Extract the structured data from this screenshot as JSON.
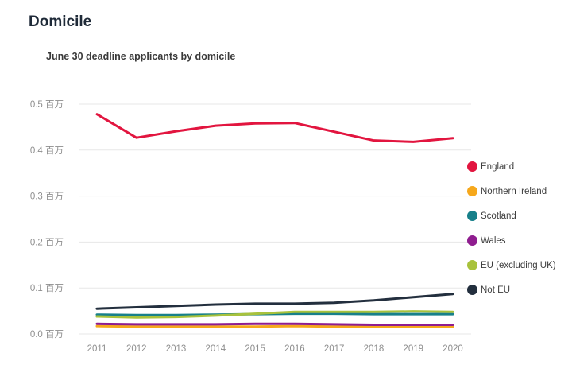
{
  "header": {
    "title": "Domicile"
  },
  "colors": {
    "background": "#ffffff",
    "title_text": "#1f2a38",
    "subtitle_text": "#3a3a3a",
    "axis_label": "#8e8e8e",
    "gridline": "#e7e7e7",
    "legend_text": "#3d3d3d"
  },
  "chart_data": {
    "type": "line",
    "title": "June 30 deadline applicants by domicile",
    "xlabel": "",
    "ylabel": "",
    "unit_label": "百万",
    "x": [
      2011,
      2012,
      2013,
      2014,
      2015,
      2016,
      2017,
      2018,
      2019,
      2020
    ],
    "ylim": [
      0,
      0.5
    ],
    "ytick_step": 0.1,
    "yticks": [
      "0.0 百万",
      "0.1 百万",
      "0.2 百万",
      "0.3 百万",
      "0.4 百万",
      "0.5 百万"
    ],
    "grid": true,
    "legend_position": "right",
    "series": [
      {
        "name": "England",
        "color": "#e2153f",
        "values": [
          0.478,
          0.427,
          0.441,
          0.453,
          0.458,
          0.459,
          0.44,
          0.421,
          0.418,
          0.426
        ]
      },
      {
        "name": "Northern Ireland",
        "color": "#f6a81c",
        "values": [
          0.017,
          0.016,
          0.016,
          0.016,
          0.016,
          0.017,
          0.016,
          0.016,
          0.015,
          0.016
        ]
      },
      {
        "name": "Scotland",
        "color": "#17808a",
        "values": [
          0.042,
          0.041,
          0.041,
          0.042,
          0.043,
          0.044,
          0.044,
          0.043,
          0.043,
          0.043
        ]
      },
      {
        "name": "Wales",
        "color": "#8f1d8f",
        "values": [
          0.022,
          0.021,
          0.021,
          0.021,
          0.022,
          0.022,
          0.021,
          0.02,
          0.02,
          0.02
        ]
      },
      {
        "name": "EU (excluding UK)",
        "color": "#a8c23c",
        "values": [
          0.038,
          0.036,
          0.037,
          0.04,
          0.044,
          0.048,
          0.048,
          0.048,
          0.049,
          0.048
        ]
      },
      {
        "name": "Not EU",
        "color": "#232f3e",
        "values": [
          0.055,
          0.058,
          0.061,
          0.064,
          0.066,
          0.066,
          0.068,
          0.073,
          0.08,
          0.087
        ]
      }
    ]
  }
}
